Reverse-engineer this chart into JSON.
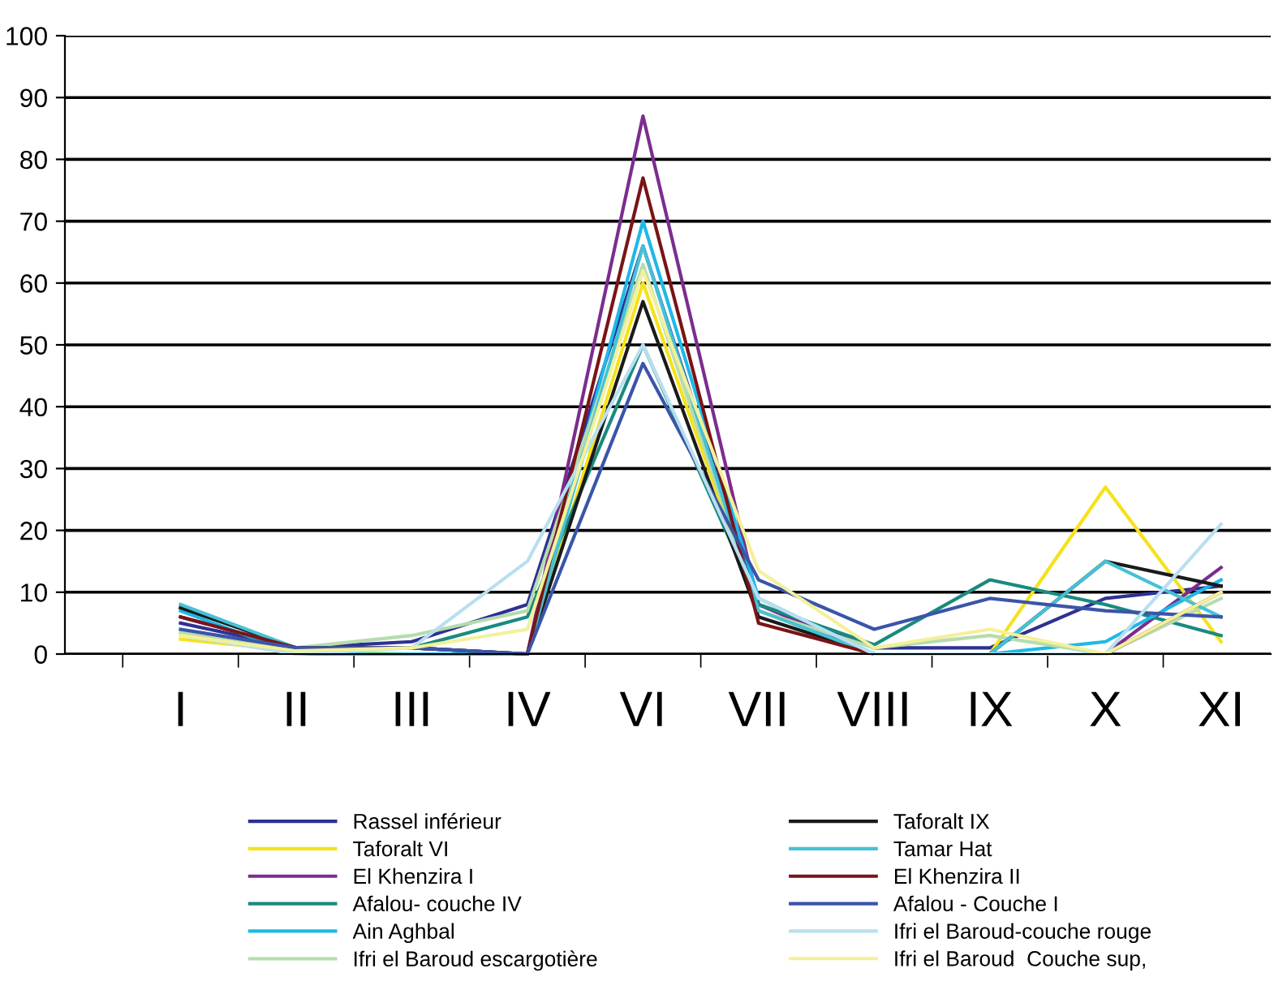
{
  "chart_data": {
    "type": "line",
    "categories": [
      "I",
      "II",
      "III",
      "IV",
      "VI",
      "VII",
      "VIII",
      "IX",
      "X",
      "XI"
    ],
    "ylim": [
      0,
      100
    ],
    "yticks": [
      0,
      10,
      20,
      30,
      40,
      50,
      60,
      70,
      80,
      90,
      100
    ],
    "grid": "y",
    "legend": "bottom",
    "marker": "none",
    "line_style": "solid",
    "series": [
      {
        "name": "Rassel inférieur",
        "color": "#2e3192",
        "values": [
          5,
          1,
          2,
          8,
          66,
          8,
          1,
          1,
          9,
          11
        ]
      },
      {
        "name": "Taforalt VI",
        "color": "#f5e21b",
        "values": [
          2.4,
          0.5,
          0,
          0,
          60,
          7,
          0,
          0,
          27,
          2
        ]
      },
      {
        "name": "El Khenzira I",
        "color": "#7b2d8e",
        "values": [
          6,
          1,
          1,
          0,
          87,
          8,
          0,
          0,
          0,
          14
        ]
      },
      {
        "name": "Afalou- couche IV",
        "color": "#1a8a7f",
        "values": [
          7.5,
          1,
          1,
          6,
          50,
          8,
          1.5,
          12,
          8,
          3
        ]
      },
      {
        "name": "Ain Aghbal",
        "color": "#1eb8e8",
        "values": [
          7,
          0,
          0,
          0,
          70,
          9,
          0,
          0,
          2,
          12
        ]
      },
      {
        "name": "Ifri el Baroud escargotière",
        "color": "#b5dcae",
        "values": [
          3.5,
          1,
          3,
          7,
          63,
          7,
          1,
          3,
          0,
          9
        ]
      },
      {
        "name": "Taforalt IX",
        "color": "#1a1a1a",
        "values": [
          7.5,
          1,
          1,
          0,
          57,
          6,
          0,
          0,
          15,
          11
        ]
      },
      {
        "name": "Tamar Hat",
        "color": "#45c1d6",
        "values": [
          8,
          1,
          1,
          0,
          66,
          7,
          0,
          0,
          15,
          6
        ]
      },
      {
        "name": "El Khenzira II",
        "color": "#7a1416",
        "values": [
          6,
          1,
          1,
          0,
          77,
          5,
          0,
          0,
          0,
          10
        ]
      },
      {
        "name": "Afalou - Couche I",
        "color": "#3a55a8",
        "values": [
          4,
          1,
          1,
          0,
          47,
          12,
          4,
          9,
          7,
          6
        ]
      },
      {
        "name": "Ifri el Baroud-couche rouge",
        "color": "#b9dff0",
        "values": [
          3,
          0,
          1,
          15,
          50,
          9,
          0,
          0,
          0,
          21
        ]
      },
      {
        "name": "Ifri el Baroud  Couche sup,",
        "color": "#f3f09a",
        "values": [
          3,
          0.5,
          1,
          4,
          62,
          13.5,
          1,
          4,
          0,
          10
        ]
      }
    ]
  }
}
